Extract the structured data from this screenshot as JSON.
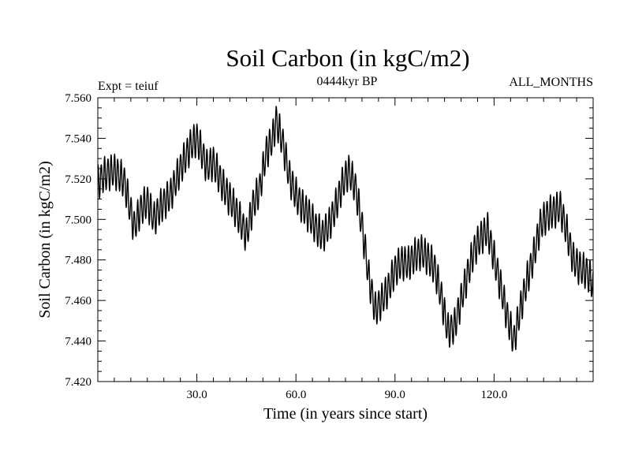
{
  "chart_data": {
    "type": "line",
    "title": "Soil Carbon (in kgC/m2)",
    "subtitle": "0444kyr BP",
    "left_label": "Expt = teiuf",
    "right_label": "ALL_MONTHS",
    "xlabel": "Time (in years since start)",
    "ylabel": "Soil Carbon (in kgC/m2)",
    "xlim": [
      0,
      150
    ],
    "ylim": [
      7.42,
      7.56
    ],
    "x_major_ticks": [
      30,
      60,
      90,
      120
    ],
    "x_tick_labels": [
      "30.0",
      "60.0",
      "90.0",
      "120.0"
    ],
    "y_major_ticks": [
      7.42,
      7.44,
      7.46,
      7.48,
      7.5,
      7.52,
      7.54,
      7.56
    ],
    "y_tick_labels": [
      "7.420",
      "7.440",
      "7.460",
      "7.480",
      "7.500",
      "7.520",
      "7.540",
      "7.560"
    ],
    "x_minor_step": 5,
    "y_minor_step": 0.005,
    "grid": false,
    "series": [
      {
        "name": "Soil Carbon",
        "sampling": "monthly",
        "seasonal_amplitude": 0.008,
        "envelope_x": [
          0,
          2,
          5,
          8,
          11,
          13,
          15,
          17,
          19,
          22,
          25,
          28,
          30,
          33,
          35,
          38,
          41,
          43,
          45,
          47,
          49,
          51,
          53,
          54,
          56,
          58,
          60,
          62,
          64,
          66,
          68,
          70,
          72,
          74,
          76,
          78,
          80,
          82,
          84,
          86,
          88,
          90,
          92,
          94,
          96,
          98,
          100,
          102,
          104,
          106,
          108,
          110,
          112,
          114,
          116,
          118,
          120,
          122,
          124,
          126,
          128,
          130,
          132,
          134,
          136,
          138,
          140,
          142,
          144,
          146,
          148,
          150
        ],
        "envelope_y": [
          7.518,
          7.522,
          7.524,
          7.519,
          7.496,
          7.505,
          7.509,
          7.5,
          7.506,
          7.512,
          7.525,
          7.536,
          7.54,
          7.526,
          7.528,
          7.516,
          7.507,
          7.5,
          7.492,
          7.507,
          7.515,
          7.533,
          7.54,
          7.549,
          7.538,
          7.521,
          7.512,
          7.506,
          7.502,
          7.496,
          7.492,
          7.497,
          7.506,
          7.517,
          7.524,
          7.516,
          7.497,
          7.472,
          7.455,
          7.46,
          7.466,
          7.475,
          7.479,
          7.478,
          7.482,
          7.484,
          7.481,
          7.476,
          7.462,
          7.445,
          7.447,
          7.46,
          7.473,
          7.485,
          7.491,
          7.495,
          7.481,
          7.467,
          7.452,
          7.44,
          7.456,
          7.47,
          7.482,
          7.497,
          7.502,
          7.504,
          7.506,
          7.494,
          7.48,
          7.476,
          7.474,
          7.468
        ]
      }
    ]
  }
}
